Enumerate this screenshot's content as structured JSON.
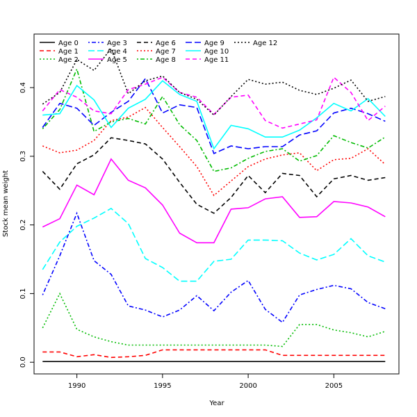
{
  "chart_data": {
    "type": "line",
    "xlabel": "Year",
    "ylabel": "Stock mean weight",
    "xlim": [
      1987.5,
      2008.8
    ],
    "ylim": [
      -0.017,
      0.478
    ],
    "x_ticks": [
      1990,
      1995,
      2000,
      2005
    ],
    "y_ticks": [
      0.0,
      0.1,
      0.2,
      0.3,
      0.4
    ],
    "y_tick_labels": [
      "0.0",
      "0.1",
      "0.2",
      "0.3",
      "0.4"
    ],
    "legend_position": "top-left",
    "grid": false,
    "x": [
      1988,
      1989,
      1990,
      1991,
      1992,
      1993,
      1994,
      1995,
      1996,
      1997,
      1998,
      1999,
      2000,
      2001,
      2002,
      2003,
      2004,
      2005,
      2006,
      2007,
      2008
    ],
    "series": [
      {
        "name": "Age 0",
        "color": "#000000",
        "dash": "solid",
        "values": [
          0.001,
          0.001,
          0.001,
          0.001,
          0.001,
          0.001,
          0.001,
          0.001,
          0.001,
          0.001,
          0.001,
          0.001,
          0.001,
          0.001,
          0.001,
          0.001,
          0.001,
          0.001,
          0.001,
          0.001,
          0.001
        ]
      },
      {
        "name": "Age 1",
        "color": "#ff0000",
        "dash": "dashed",
        "values": [
          0.015,
          0.015,
          0.008,
          0.011,
          0.007,
          0.008,
          0.01,
          0.018,
          0.018,
          0.018,
          0.018,
          0.018,
          0.018,
          0.018,
          0.01,
          0.01,
          0.01,
          0.01,
          0.01,
          0.01,
          0.01
        ]
      },
      {
        "name": "Age 2",
        "color": "#00bb00",
        "dash": "dotted",
        "values": [
          0.05,
          0.1,
          0.048,
          0.037,
          0.03,
          0.025,
          0.025,
          0.025,
          0.025,
          0.025,
          0.025,
          0.025,
          0.025,
          0.025,
          0.023,
          0.055,
          0.055,
          0.047,
          0.043,
          0.037,
          0.045
        ]
      },
      {
        "name": "Age 3",
        "color": "#0000ff",
        "dash": "dotdash",
        "values": [
          0.098,
          0.155,
          0.217,
          0.148,
          0.128,
          0.082,
          0.076,
          0.066,
          0.076,
          0.097,
          0.075,
          0.102,
          0.119,
          0.077,
          0.058,
          0.098,
          0.106,
          0.112,
          0.107,
          0.087,
          0.078
        ]
      },
      {
        "name": "Age 4",
        "color": "#00ffff",
        "dash": "longdash",
        "values": [
          0.135,
          0.175,
          0.198,
          0.21,
          0.224,
          0.202,
          0.151,
          0.138,
          0.118,
          0.118,
          0.147,
          0.15,
          0.178,
          0.178,
          0.177,
          0.159,
          0.149,
          0.157,
          0.18,
          0.155,
          0.146
        ]
      },
      {
        "name": "Age 5",
        "color": "#ff00ff",
        "dash": "solid",
        "values": [
          0.197,
          0.209,
          0.258,
          0.244,
          0.296,
          0.265,
          0.254,
          0.229,
          0.188,
          0.174,
          0.174,
          0.223,
          0.225,
          0.238,
          0.241,
          0.211,
          0.212,
          0.234,
          0.232,
          0.226,
          0.212
        ]
      },
      {
        "name": "Age 6",
        "color": "#000000",
        "dash": "dashed",
        "values": [
          0.278,
          0.252,
          0.289,
          0.302,
          0.327,
          0.323,
          0.318,
          0.296,
          0.262,
          0.23,
          0.217,
          0.24,
          0.272,
          0.247,
          0.275,
          0.272,
          0.241,
          0.267,
          0.272,
          0.265,
          0.269
        ]
      },
      {
        "name": "Age 7",
        "color": "#ff0000",
        "dash": "dotted",
        "values": [
          0.315,
          0.305,
          0.309,
          0.323,
          0.352,
          0.357,
          0.371,
          0.342,
          0.314,
          0.285,
          0.243,
          0.264,
          0.285,
          0.296,
          0.302,
          0.305,
          0.279,
          0.295,
          0.297,
          0.311,
          0.288
        ]
      },
      {
        "name": "Age 8",
        "color": "#00bb00",
        "dash": "dotdash",
        "values": [
          0.34,
          0.368,
          0.427,
          0.336,
          0.35,
          0.355,
          0.347,
          0.387,
          0.346,
          0.323,
          0.278,
          0.283,
          0.297,
          0.307,
          0.311,
          0.293,
          0.301,
          0.33,
          0.32,
          0.312,
          0.328
        ]
      },
      {
        "name": "Age 9",
        "color": "#0000ff",
        "dash": "longdash",
        "values": [
          0.342,
          0.377,
          0.37,
          0.345,
          0.364,
          0.38,
          0.413,
          0.363,
          0.375,
          0.371,
          0.304,
          0.315,
          0.311,
          0.314,
          0.314,
          0.331,
          0.337,
          0.363,
          0.37,
          0.362,
          0.351
        ]
      },
      {
        "name": "Age 10",
        "color": "#00ffff",
        "dash": "solid",
        "values": [
          0.36,
          0.362,
          0.403,
          0.382,
          0.342,
          0.37,
          0.383,
          0.41,
          0.39,
          0.38,
          0.311,
          0.345,
          0.34,
          0.328,
          0.328,
          0.338,
          0.356,
          0.377,
          0.366,
          0.384,
          0.358
        ]
      },
      {
        "name": "Age 11",
        "color": "#ff00ff",
        "dash": "dashed",
        "values": [
          0.366,
          0.397,
          0.386,
          0.366,
          0.362,
          0.397,
          0.405,
          0.415,
          0.393,
          0.386,
          0.361,
          0.386,
          0.389,
          0.352,
          0.341,
          0.347,
          0.353,
          0.415,
          0.393,
          0.352,
          0.373
        ]
      },
      {
        "name": "Age 12",
        "color": "#000000",
        "dash": "dotted",
        "values": [
          0.376,
          0.393,
          0.441,
          0.425,
          0.457,
          0.391,
          0.41,
          0.417,
          0.393,
          0.383,
          0.36,
          0.387,
          0.412,
          0.405,
          0.408,
          0.396,
          0.39,
          0.399,
          0.411,
          0.38,
          0.387
        ]
      }
    ]
  }
}
